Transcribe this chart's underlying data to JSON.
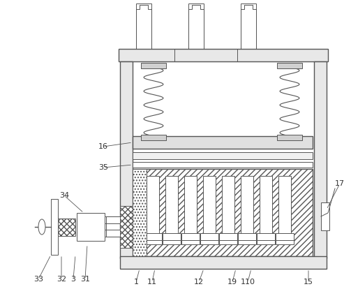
{
  "bg_color": "#ffffff",
  "line_color": "#555555",
  "label_color": "#333333",
  "figsize": [
    5.03,
    4.24
  ],
  "dpi": 100
}
